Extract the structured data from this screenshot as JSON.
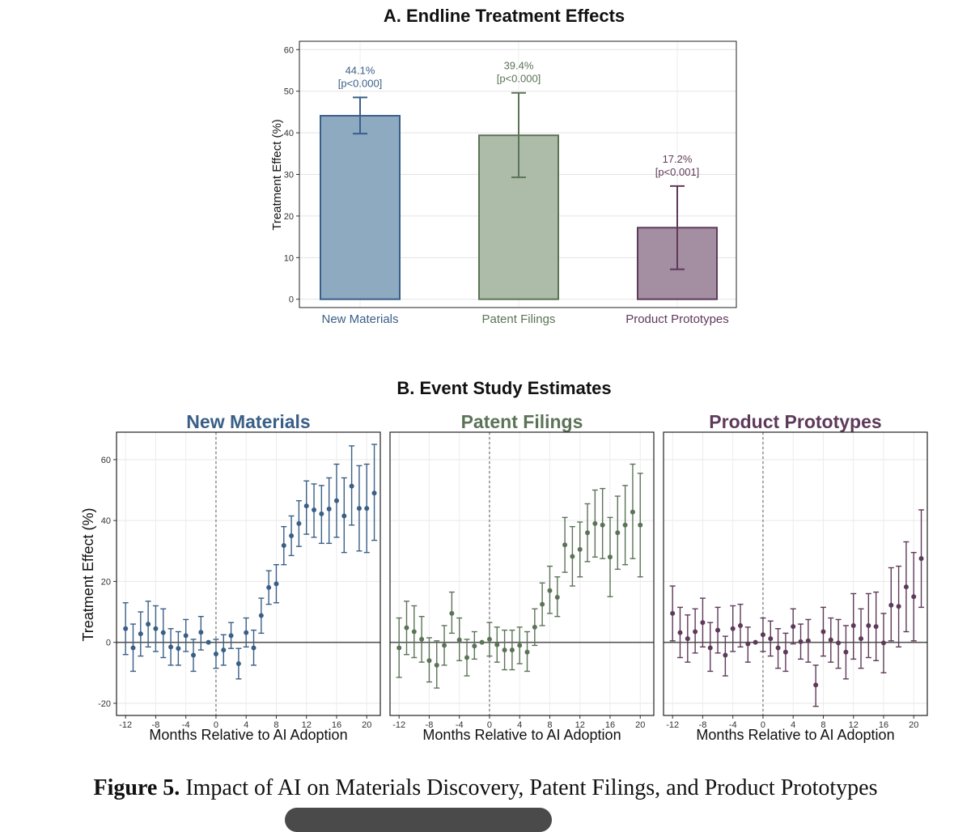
{
  "caption": {
    "label": "Figure 5.",
    "text": "Impact of AI on Materials Discovery, Patent Filings, and Product Prototypes"
  },
  "colors": {
    "new_materials": "#3a5f87",
    "patent_filings": "#5b7457",
    "product_prototypes": "#5e3a5a",
    "new_materials_fill": "#8eaac0",
    "patent_filings_fill": "#adbba9",
    "product_prototypes_fill": "#a48ea1"
  },
  "chart_data": [
    {
      "type": "bar",
      "title": "A. Endline Treatment Effects",
      "ylabel": "Treatment Effect (%)",
      "xlabel": "",
      "ylim": [
        -2,
        62
      ],
      "yticks": [
        0,
        10,
        20,
        30,
        40,
        50,
        60
      ],
      "categories": [
        "New Materials",
        "Patent Filings",
        "Product Prototypes"
      ],
      "values": [
        44.1,
        39.4,
        17.2
      ],
      "ci_low": [
        39.8,
        29.3,
        7.2
      ],
      "ci_high": [
        48.5,
        49.6,
        27.2
      ],
      "value_labels": [
        "44.1%",
        "39.4%",
        "17.2%"
      ],
      "p_labels": [
        "[p<0.000]",
        "[p<0.000]",
        "[p<0.001]"
      ]
    },
    {
      "type": "scatter",
      "title": "B. Event Study Estimates",
      "xlabel": "Months Relative to AI Adoption",
      "ylabel": "Treatment Effect (%)",
      "xlim": [
        -13.2,
        21.8
      ],
      "ylim": [
        -24,
        69
      ],
      "xticks": [
        -12,
        -8,
        -4,
        0,
        4,
        8,
        12,
        16,
        20
      ],
      "yticks": [
        -20,
        0,
        20,
        40,
        60
      ],
      "x": [
        -12,
        -11,
        -10,
        -9,
        -8,
        -7,
        -6,
        -5,
        -4,
        -3,
        -2,
        -1,
        0,
        1,
        2,
        3,
        4,
        5,
        6,
        7,
        8,
        9,
        10,
        11,
        12,
        13,
        14,
        15,
        16,
        17,
        18,
        19,
        20,
        21
      ],
      "panels": [
        {
          "name": "New Materials",
          "values": [
            4.5,
            -1.8,
            2.8,
            6.0,
            4.5,
            3.2,
            -1.5,
            -2.0,
            2.2,
            -4.2,
            3.3,
            0,
            -3.8,
            -2.5,
            2.2,
            -7.0,
            3.2,
            -1.8,
            8.8,
            18.0,
            19.2,
            31.8,
            35.0,
            39.0,
            44.8,
            43.5,
            42.2,
            43.8,
            46.5,
            41.5,
            51.3,
            44.0,
            44.0,
            49.0
          ],
          "ci_low": [
            -4.0,
            -9.5,
            -4.5,
            -1.5,
            -3.0,
            -5.0,
            -7.5,
            -7.5,
            -3.0,
            -9.5,
            -2.5,
            0,
            -8.5,
            -7.5,
            -2.0,
            -12.0,
            -1.5,
            -7.5,
            3.0,
            12.5,
            13.0,
            25.5,
            28.5,
            31.5,
            35.5,
            34.5,
            32.5,
            32.5,
            34.5,
            29.5,
            38.5,
            30.0,
            29.5,
            33.5
          ],
          "ci_high": [
            13.0,
            6.0,
            10.0,
            13.5,
            12.0,
            11.0,
            4.5,
            3.5,
            7.5,
            1.0,
            8.5,
            0,
            1.0,
            2.5,
            6.5,
            -2.0,
            8.0,
            4.0,
            14.5,
            23.5,
            25.5,
            38.0,
            41.5,
            46.5,
            53.0,
            52.0,
            51.5,
            54.0,
            58.5,
            54.0,
            64.5,
            58.0,
            58.5,
            65.0
          ]
        },
        {
          "name": "Patent Filings",
          "values": [
            -1.8,
            4.8,
            3.5,
            1.0,
            -6.0,
            -7.5,
            -1.0,
            9.5,
            0.8,
            -5.0,
            -1.2,
            0,
            1.0,
            -0.8,
            -2.5,
            -2.5,
            -1.0,
            -3.2,
            5.0,
            12.5,
            17.0,
            14.8,
            32.0,
            28.2,
            30.5,
            36.0,
            39.0,
            38.5,
            28.0,
            36.0,
            38.5,
            42.8,
            38.5
          ],
          "ci_low": [
            -11.5,
            -4.0,
            -5.0,
            -6.5,
            -13.0,
            -15.0,
            -7.5,
            3.0,
            -6.0,
            -11.0,
            -5.5,
            0,
            -4.5,
            -6.5,
            -9.0,
            -9.0,
            -7.0,
            -9.5,
            -1.0,
            5.5,
            9.5,
            8.5,
            23.0,
            18.5,
            21.5,
            26.5,
            28.0,
            27.5,
            15.0,
            24.0,
            25.5,
            27.5,
            21.5
          ],
          "ci_high": [
            8.0,
            13.5,
            12.0,
            8.5,
            1.5,
            0.5,
            5.5,
            16.5,
            8.0,
            1.0,
            3.5,
            0,
            6.5,
            5.0,
            4.0,
            4.0,
            5.0,
            3.5,
            11.0,
            19.5,
            25.0,
            21.5,
            41.0,
            38.0,
            39.5,
            45.5,
            50.0,
            50.5,
            41.0,
            48.0,
            51.5,
            58.5,
            55.5
          ],
          "x": [
            -12,
            -11,
            -10,
            -9,
            -8,
            -7,
            -6,
            -5,
            -4,
            -3,
            -2,
            -1,
            0,
            1,
            2,
            3,
            4,
            5,
            6,
            7,
            8,
            9,
            10,
            11,
            12,
            13,
            14,
            15,
            16,
            17,
            18,
            19,
            20
          ]
        },
        {
          "name": "Product Prototypes",
          "values": [
            9.5,
            3.2,
            1.2,
            3.5,
            6.5,
            -1.8,
            4.0,
            -4.2,
            4.5,
            5.5,
            -0.5,
            0,
            2.5,
            1.2,
            -1.8,
            -3.2,
            5.2,
            0.2,
            0.5,
            -14.0,
            3.5,
            0.8,
            -0.2,
            -3.2,
            5.5,
            1.2,
            5.5,
            5.2,
            -0.2,
            12.2,
            11.8,
            18.2,
            15.0,
            27.5
          ],
          "ci_low": [
            0.5,
            -5.0,
            -6.5,
            -3.5,
            -1.5,
            -9.5,
            -3.5,
            -11.0,
            -3.0,
            -1.5,
            -6.5,
            0,
            -3.0,
            -4.5,
            -8.5,
            -9.5,
            -0.5,
            -5.5,
            -6.5,
            -21.0,
            -4.5,
            -6.5,
            -8.5,
            -12.0,
            -5.5,
            -8.5,
            -5.0,
            -6.0,
            -10.0,
            0.5,
            -1.5,
            3.5,
            0.5,
            11.5
          ],
          "ci_high": [
            18.5,
            11.5,
            9.0,
            11.0,
            14.5,
            6.5,
            11.5,
            2.0,
            12.0,
            12.5,
            5.0,
            0,
            8.0,
            7.0,
            4.5,
            3.0,
            11.0,
            6.0,
            7.5,
            -7.5,
            11.5,
            8.0,
            7.5,
            5.5,
            16.0,
            11.0,
            16.0,
            16.5,
            9.5,
            24.5,
            25.0,
            33.0,
            29.5,
            43.5
          ]
        }
      ]
    }
  ]
}
